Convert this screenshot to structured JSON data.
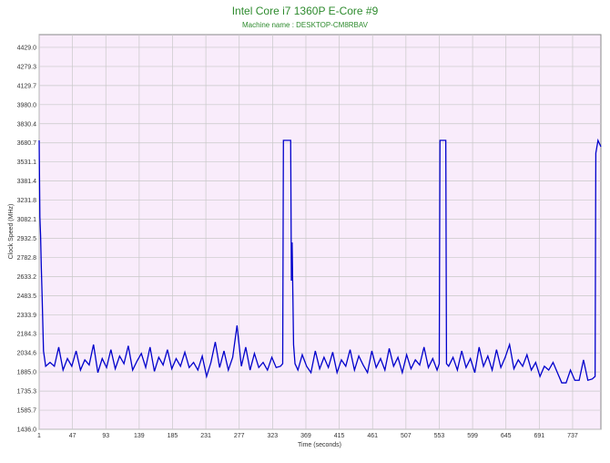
{
  "chart_data": {
    "type": "line",
    "title": "Intel Core i7 1360P E-Core #9",
    "subtitle": "Machine name : DESKTOP-CM8RBAV",
    "xlabel": "Time (seconds)",
    "ylabel": "Clock Speed (MHz)",
    "xlim": [
      1,
      776
    ],
    "xticks": [
      1,
      47,
      93,
      139,
      185,
      231,
      277,
      323,
      369,
      415,
      461,
      507,
      553,
      599,
      645,
      691,
      737
    ],
    "ylim": [
      1436,
      4528.7
    ],
    "yticks": [
      {
        "value": 1436,
        "label": "1436.0"
      },
      1585.7,
      1735.3,
      {
        "value": 1885,
        "label": "1885.0"
      },
      2034.6,
      2184.3,
      2333.9,
      2483.5,
      2633.2,
      2782.8,
      2932.5,
      3082.1,
      3231.8,
      3381.4,
      3531.1,
      3680.7,
      3830.4,
      {
        "value": 3980,
        "label": "3980.0"
      },
      4129.7,
      4279.3,
      {
        "value": 4429,
        "label": "4429.0"
      }
    ],
    "grid": true,
    "series": [
      {
        "name": "E-Core #9",
        "color": "#0000cc",
        "x": [
          1,
          2,
          3,
          4,
          5,
          7,
          10,
          16,
          22,
          28,
          34,
          40,
          46,
          52,
          58,
          64,
          70,
          76,
          82,
          88,
          94,
          100,
          106,
          112,
          118,
          124,
          130,
          136,
          142,
          148,
          154,
          160,
          166,
          172,
          178,
          184,
          190,
          196,
          202,
          208,
          214,
          220,
          226,
          232,
          238,
          244,
          250,
          256,
          262,
          268,
          274,
          280,
          286,
          292,
          298,
          304,
          310,
          316,
          322,
          328,
          334,
          337,
          338,
          346,
          348,
          349,
          350,
          351,
          352,
          354,
          358,
          364,
          370,
          376,
          382,
          388,
          394,
          400,
          406,
          412,
          418,
          424,
          430,
          436,
          442,
          448,
          454,
          460,
          466,
          472,
          478,
          484,
          490,
          496,
          502,
          508,
          514,
          520,
          526,
          532,
          538,
          544,
          550,
          553,
          554,
          562,
          563,
          566,
          572,
          578,
          584,
          590,
          596,
          602,
          608,
          614,
          620,
          626,
          632,
          638,
          644,
          650,
          656,
          662,
          668,
          674,
          680,
          686,
          692,
          698,
          704,
          710,
          716,
          722,
          728,
          734,
          740,
          746,
          752,
          758,
          764,
          768,
          769,
          772,
          776
        ],
        "values": [
          3700,
          3100,
          2950,
          2700,
          2500,
          2050,
          1930,
          1960,
          1930,
          2080,
          1900,
          1990,
          1930,
          2050,
          1900,
          1980,
          1940,
          2100,
          1880,
          1990,
          1920,
          2060,
          1910,
          2010,
          1950,
          2090,
          1900,
          1970,
          2030,
          1920,
          2080,
          1890,
          2000,
          1940,
          2060,
          1910,
          1990,
          1930,
          2040,
          1920,
          1960,
          1900,
          2010,
          1850,
          1960,
          2120,
          1920,
          2050,
          1900,
          2000,
          2250,
          1930,
          2080,
          1900,
          2030,
          1920,
          1960,
          1900,
          2000,
          1920,
          1930,
          1950,
          3700,
          3700,
          3700,
          2600,
          2900,
          2500,
          2100,
          1950,
          1900,
          2020,
          1930,
          1880,
          2050,
          1910,
          2000,
          1920,
          2040,
          1880,
          1980,
          1930,
          2060,
          1900,
          2010,
          1940,
          1880,
          2050,
          1920,
          1990,
          1900,
          2070,
          1930,
          2000,
          1880,
          2020,
          1910,
          1980,
          1940,
          2080,
          1920,
          1990,
          1900,
          1950,
          3700,
          3700,
          1950,
          1930,
          2000,
          1900,
          2050,
          1920,
          1990,
          1880,
          2080,
          1930,
          2010,
          1900,
          2060,
          1920,
          2000,
          2100,
          1910,
          1980,
          1930,
          2020,
          1900,
          1960,
          1850,
          1930,
          1900,
          1960,
          1880,
          1800,
          1800,
          1900,
          1820,
          1820,
          1980,
          1820,
          1830,
          1850,
          3600,
          3700,
          3650
        ]
      }
    ]
  }
}
